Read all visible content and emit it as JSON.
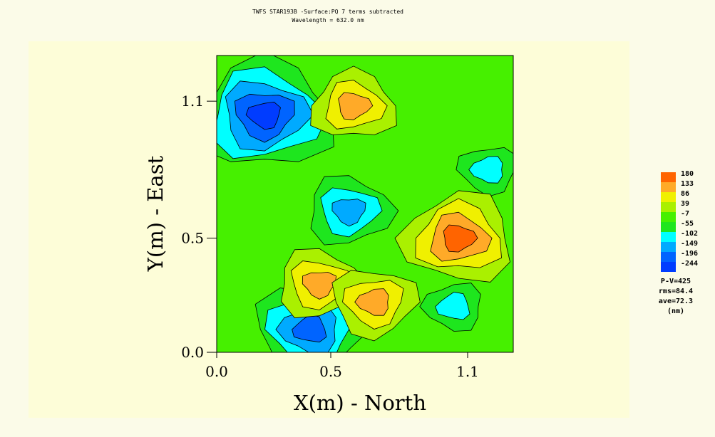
{
  "header": {
    "title": "TWFS STAR193B -Surface:PQ 7 terms subtracted",
    "subtitle": "Wavelength = 632.0 nm"
  },
  "chart_data": {
    "type": "heatmap",
    "subtype": "contour",
    "xlabel": "X(m) -  North",
    "ylabel": "Y(m) -  East",
    "xlim": [
      0.0,
      1.3
    ],
    "ylim": [
      0.0,
      1.3
    ],
    "xticks": [
      0.0,
      0.5,
      1.1
    ],
    "yticks": [
      0.0,
      0.5,
      1.1
    ],
    "xtick_labels": [
      "0.0",
      "0.5",
      "1.1"
    ],
    "ytick_labels": [
      "0.0",
      "0.5",
      "1.1"
    ],
    "legend": {
      "placement": "right",
      "levels": [
        180,
        133,
        86,
        39,
        -7,
        -55,
        -102,
        -149,
        -196,
        -244
      ],
      "labels": [
        "180",
        "133",
        "86",
        "39",
        "-7",
        "-55",
        "-102",
        "-149",
        "-196",
        "-244"
      ],
      "colors": [
        "#ff6400",
        "#ffaa28",
        "#f0f000",
        "#aaf000",
        "#46f000",
        "#1ee61e",
        "#00ffff",
        "#00aaff",
        "#0064ff",
        "#003cff"
      ]
    },
    "stats": [
      "P-V=425",
      "rms=84.4",
      "ave=72.3",
      "(nm)"
    ],
    "features": [
      {
        "type": "minimum",
        "x": 0.21,
        "y": 1.04,
        "value": -244
      },
      {
        "type": "minimum",
        "x": 0.58,
        "y": 0.62,
        "value": -149
      },
      {
        "type": "minimum",
        "x": 0.41,
        "y": 0.1,
        "value": -196
      },
      {
        "type": "minimum",
        "x": 1.19,
        "y": 0.8,
        "value": -102
      },
      {
        "type": "minimum",
        "x": 1.04,
        "y": 0.2,
        "value": -102
      },
      {
        "type": "maximum",
        "x": 1.06,
        "y": 0.5,
        "value": 180
      },
      {
        "type": "maximum",
        "x": 0.6,
        "y": 1.08,
        "value": 133
      },
      {
        "type": "maximum",
        "x": 0.45,
        "y": 0.3,
        "value": 133
      },
      {
        "type": "maximum",
        "x": 0.69,
        "y": 0.22,
        "value": 133
      }
    ]
  }
}
